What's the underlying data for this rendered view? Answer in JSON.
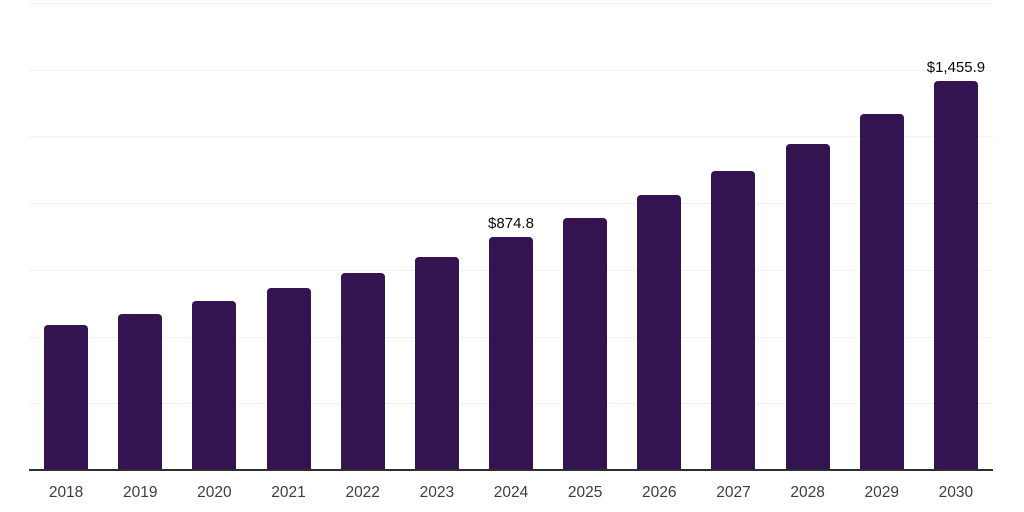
{
  "chart_data": {
    "type": "bar",
    "title": "",
    "xlabel": "",
    "ylabel": "",
    "categories": [
      "2018",
      "2019",
      "2020",
      "2021",
      "2022",
      "2023",
      "2024",
      "2025",
      "2026",
      "2027",
      "2028",
      "2029",
      "2030"
    ],
    "values": [
      543,
      586,
      633,
      681,
      740,
      800,
      874.8,
      945,
      1029,
      1119,
      1220,
      1334,
      1455.9
    ],
    "data_labels": {
      "2024": "$874.8",
      "2030": "$1,455.9"
    },
    "ylim": [
      0,
      1750
    ],
    "grid_step": 250,
    "grid": true,
    "legend": false,
    "y_axis_labels_visible": false
  },
  "colors": {
    "bar": "#331450",
    "gridline": "#f1f1f1",
    "axis_line": "#2e2e2e",
    "x_tick_label": "#3d3d3d",
    "data_label": "#0a0a0a",
    "background": "#ffffff"
  }
}
